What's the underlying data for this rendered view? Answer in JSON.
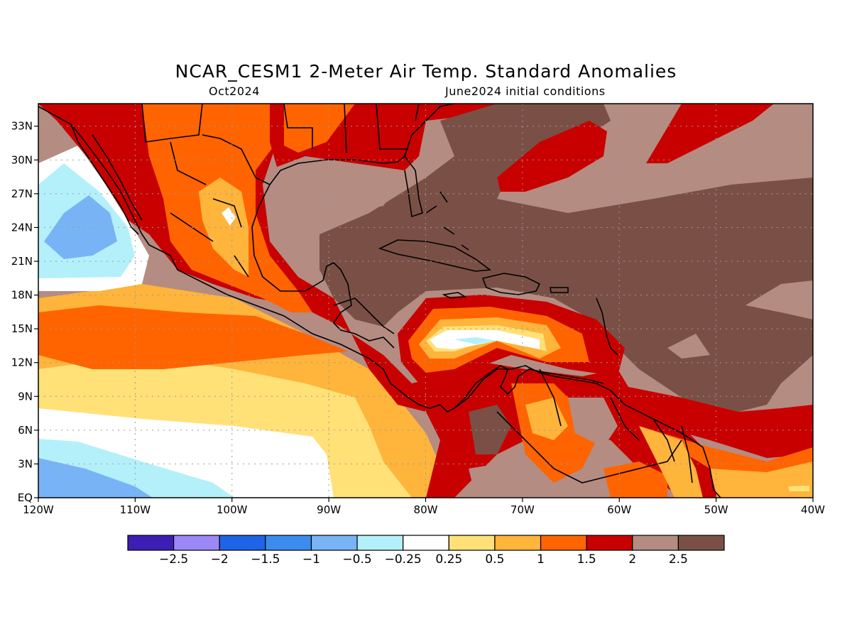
{
  "title": "NCAR_CESM1 2-Meter Air Temp. Standard Anomalies",
  "subtitle_left": "Oct2024",
  "subtitle_right": "June2024 initial conditions",
  "map": {
    "lon_range": [
      -120,
      -40
    ],
    "lat_range": [
      0,
      35
    ],
    "x_ticks": [
      {
        "lon": -120,
        "label": "120W"
      },
      {
        "lon": -110,
        "label": "110W"
      },
      {
        "lon": -100,
        "label": "100W"
      },
      {
        "lon": -90,
        "label": "90W"
      },
      {
        "lon": -80,
        "label": "80W"
      },
      {
        "lon": -70,
        "label": "70W"
      },
      {
        "lon": -60,
        "label": "60W"
      },
      {
        "lon": -50,
        "label": "50W"
      },
      {
        "lon": -40,
        "label": "40W"
      }
    ],
    "y_ticks": [
      {
        "lat": 0,
        "label": "EQ"
      },
      {
        "lat": 3,
        "label": "3N"
      },
      {
        "lat": 6,
        "label": "6N"
      },
      {
        "lat": 9,
        "label": "9N"
      },
      {
        "lat": 12,
        "label": "12N"
      },
      {
        "lat": 15,
        "label": "15N"
      },
      {
        "lat": 18,
        "label": "18N"
      },
      {
        "lat": 21,
        "label": "21N"
      },
      {
        "lat": 24,
        "label": "24N"
      },
      {
        "lat": 27,
        "label": "27N"
      },
      {
        "lat": 30,
        "label": "30N"
      },
      {
        "lat": 33,
        "label": "33N"
      }
    ],
    "grid": "dotted"
  },
  "colorbar": {
    "colors": [
      "#3c1eb4",
      "#9b87f5",
      "#1e64e6",
      "#3c8cf0",
      "#78b4f5",
      "#b4f0fa",
      "#ffffff",
      "#ffe178",
      "#ffb43c",
      "#ff6400",
      "#c80000",
      "#b48c82",
      "#7a5046"
    ],
    "labels": [
      "-2.5",
      "-2",
      "-1.5",
      "-1",
      "-0.5",
      "-0.25",
      "0.25",
      "0.5",
      "1",
      "1.5",
      "2",
      "2.5"
    ]
  }
}
